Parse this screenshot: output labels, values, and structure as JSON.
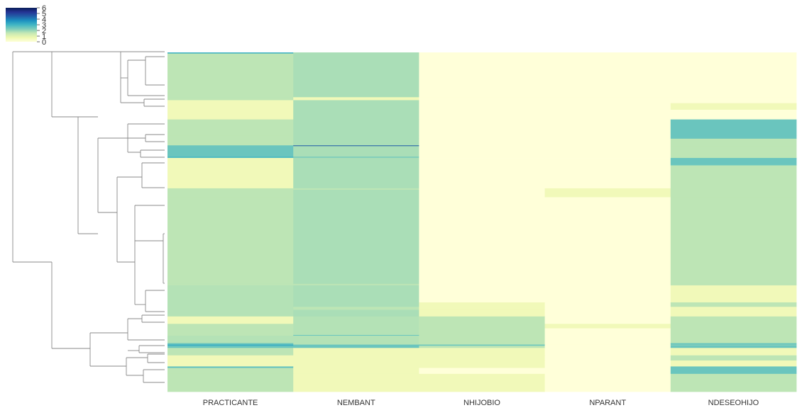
{
  "chart_data": {
    "type": "heatmap",
    "title": "",
    "xlabel": "",
    "ylabel": "",
    "columns": [
      "PRACTICANTE",
      "NEMBANT",
      "NHIJOBIO",
      "NPARANT",
      "NDESEOHIJO"
    ],
    "colorbar": {
      "colormap": "YlGnBu",
      "range": [
        0,
        6
      ],
      "ticks": [
        "6",
        "5",
        "4",
        "3",
        "2",
        "1",
        "0"
      ],
      "colors": [
        "#ffffd9",
        "#edf8b1",
        "#c7e9b4",
        "#7fcdbb",
        "#41b6c4",
        "#1d91c0",
        "#225ea8",
        "#253494",
        "#081d58"
      ]
    },
    "dendrogram": {
      "side": "left",
      "line_color": "#888888"
    },
    "note_rows": "Rows are ordered as clustered; each row is a run of identical observations; values are estimated from the color scale.",
    "rows": [
      {
        "weight": 1.5,
        "values": [
          3.1,
          1.8,
          0,
          0,
          0
        ]
      },
      {
        "weight": 59,
        "values": [
          1.6,
          1.8,
          0,
          0,
          0
        ]
      },
      {
        "weight": 4,
        "values": [
          1.6,
          0.6,
          0,
          0,
          0
        ]
      },
      {
        "weight": 4,
        "values": [
          0.6,
          1.8,
          0,
          0,
          0
        ]
      },
      {
        "weight": 9,
        "values": [
          0.6,
          1.8,
          0,
          0,
          0.6
        ]
      },
      {
        "weight": 13,
        "values": [
          0.6,
          1.8,
          0,
          0,
          0
        ]
      },
      {
        "weight": 22,
        "values": [
          1.6,
          1.8,
          0,
          0,
          2.5
        ]
      },
      {
        "weight": 4,
        "values": [
          1.6,
          1.8,
          0,
          0,
          2.5
        ]
      },
      {
        "weight": 9,
        "values": [
          1.6,
          1.8,
          0,
          0,
          1.6
        ]
      },
      {
        "weight": 1,
        "values": [
          2.5,
          4.5,
          0,
          0,
          1.6
        ]
      },
      {
        "weight": 14,
        "values": [
          2.5,
          1.8,
          0,
          0,
          1.6
        ]
      },
      {
        "weight": 2,
        "values": [
          2.8,
          2.2,
          0,
          0,
          1.6
        ]
      },
      {
        "weight": 1,
        "values": [
          0.6,
          1.8,
          0,
          0,
          2.5
        ]
      },
      {
        "weight": 9,
        "values": [
          0.6,
          1.8,
          0,
          0,
          2.5
        ]
      },
      {
        "weight": 31,
        "values": [
          0.6,
          1.8,
          0,
          0,
          1.6
        ]
      },
      {
        "weight": 2,
        "values": [
          1.6,
          1.6,
          0,
          0.6,
          1.6
        ]
      },
      {
        "weight": 10,
        "values": [
          1.6,
          1.8,
          0,
          0.6,
          1.6
        ]
      },
      {
        "weight": 117,
        "values": [
          1.6,
          1.8,
          0,
          0,
          1.6
        ]
      },
      {
        "weight": 2,
        "values": [
          1.6,
          1.6,
          0,
          0,
          1.6
        ]
      },
      {
        "weight": 23,
        "values": [
          1.7,
          1.8,
          0,
          0,
          0.6
        ]
      },
      {
        "weight": 6,
        "values": [
          1.7,
          1.8,
          0.6,
          0,
          1.6
        ]
      },
      {
        "weight": 4,
        "values": [
          1.7,
          1.6,
          0.6,
          0,
          0.6
        ]
      },
      {
        "weight": 9,
        "values": [
          1.7,
          1.8,
          0.6,
          0,
          0.6
        ]
      },
      {
        "weight": 10,
        "values": [
          0.6,
          1.7,
          1.6,
          0,
          1.6
        ]
      },
      {
        "weight": 6,
        "values": [
          1.6,
          1.7,
          1.6,
          0.6,
          1.6
        ]
      },
      {
        "weight": 9,
        "values": [
          1.6,
          1.7,
          1.6,
          0,
          1.6
        ]
      },
      {
        "weight": 1,
        "values": [
          1.6,
          2.5,
          1.6,
          0,
          1.6
        ]
      },
      {
        "weight": 10,
        "values": [
          1.7,
          1.7,
          1.6,
          0,
          1.6
        ]
      },
      {
        "weight": 2,
        "values": [
          2.5,
          1.7,
          1.6,
          0,
          2.5
        ]
      },
      {
        "weight": 1.5,
        "values": [
          3.2,
          2.5,
          2.5,
          0,
          2.2
        ]
      },
      {
        "weight": 3,
        "values": [
          2.5,
          2.5,
          1.6,
          0,
          2.5
        ]
      },
      {
        "weight": 10,
        "values": [
          1.6,
          0.6,
          0.6,
          0,
          0.6
        ]
      },
      {
        "weight": 7,
        "values": [
          0.6,
          0.6,
          0.6,
          0,
          1.6
        ]
      },
      {
        "weight": 8,
        "values": [
          0.6,
          0.6,
          0.6,
          0,
          0.6
        ]
      },
      {
        "weight": 2,
        "values": [
          2.6,
          0.6,
          0.6,
          0,
          2.5
        ]
      },
      {
        "weight": 8,
        "values": [
          1.6,
          0.6,
          0,
          0,
          2.5
        ]
      },
      {
        "weight": 8,
        "values": [
          1.6,
          0.6,
          0.6,
          0,
          1.6
        ]
      },
      {
        "weight": 16,
        "values": [
          1.6,
          0.6,
          0.6,
          0,
          1.6
        ]
      }
    ]
  }
}
